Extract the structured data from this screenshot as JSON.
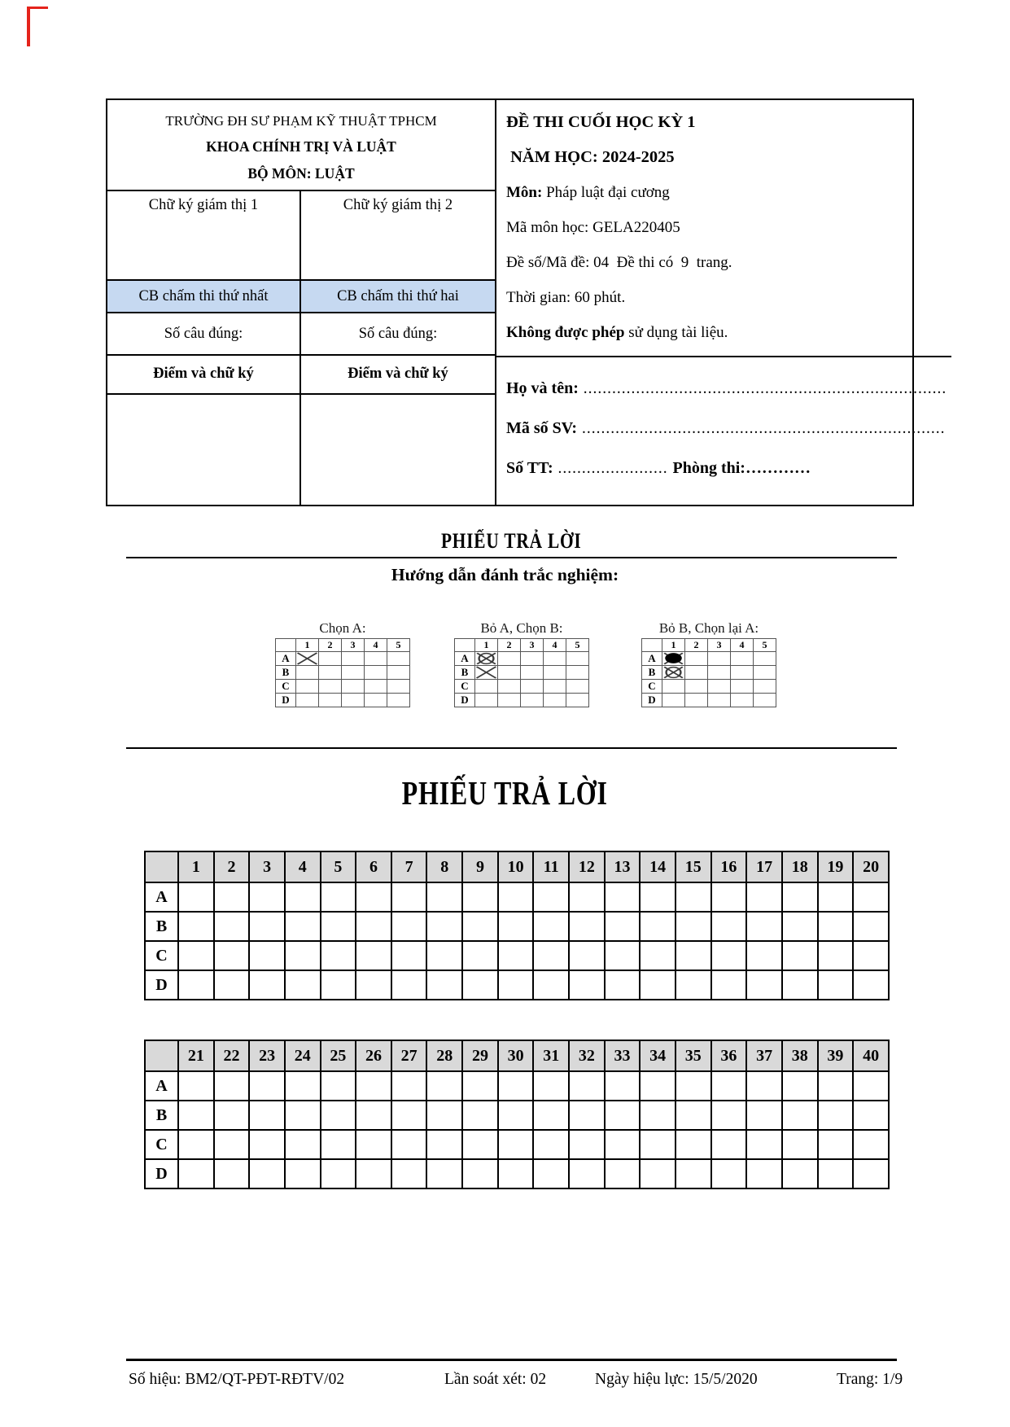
{
  "colors": {
    "corner_mark": "#e5231b",
    "grader_row_bg": "#c6d9f1",
    "table_header_bg": "#d9d9d9"
  },
  "header": {
    "school": {
      "line1": "TRƯỜNG ĐH SƯ PHẠM KỸ THUẬT TPHCM",
      "line2": "KHOA CHÍNH TRỊ VÀ LUẬT",
      "line3": "BỘ MÔN: LUẬT"
    },
    "proctor_labels": [
      "Chữ ký giám thị 1",
      "Chữ ký giám thị 2"
    ],
    "grader_labels": [
      "CB chấm thi thứ nhất",
      "CB chấm thi thứ hai"
    ],
    "correct_count_labels": [
      "Số câu đúng:",
      "Số câu đúng:"
    ],
    "score_labels": [
      "Điểm và chữ ký",
      "Điểm và chữ ký"
    ],
    "exam": {
      "title": "ĐỀ THI CUỐI HỌC KỲ 1",
      "year_line": " NĂM HỌC: 2024-2025",
      "subject_label": "Môn:",
      "subject_rest": " Pháp luật đại cương",
      "code_line": "Mã môn học: GELA220405",
      "variant_line": "Đề số/Mã đề: 04  Đề thi có  9  trang.",
      "time_line": "Thời gian: 60 phút.",
      "rule_bold": "Không được phép",
      "rule_rest": " sử dụng tài liệu."
    },
    "student": {
      "name_label": "Họ và tên:",
      "name_dots": " ............................................................................",
      "id_label": "Mã số SV:",
      "id_dots": " ............................................................................",
      "seat_label": "Số TT:",
      "seat_dots": " .......................  ",
      "room_label": "Phòng thi:",
      "room_dots": "…………"
    }
  },
  "answer_section": {
    "small_title": "PHIẾU TRẢ LỜI",
    "instructions_title": "Hướng dẫn đánh trắc nghiệm:"
  },
  "instructions": {
    "columns": [
      "1",
      "2",
      "3",
      "4",
      "5"
    ],
    "rows": [
      "A",
      "B",
      "C",
      "D"
    ],
    "examples": [
      {
        "caption": "Chọn A:",
        "marks": [
          {
            "row": "A",
            "col": "1",
            "type": "x"
          }
        ]
      },
      {
        "caption": "Bỏ A, Chọn B:",
        "marks": [
          {
            "row": "A",
            "col": "1",
            "type": "circled-x"
          },
          {
            "row": "B",
            "col": "1",
            "type": "x"
          }
        ]
      },
      {
        "caption": "Bỏ B, Chọn lại A:",
        "marks": [
          {
            "row": "A",
            "col": "1",
            "type": "filled"
          },
          {
            "row": "B",
            "col": "1",
            "type": "circled-x"
          }
        ]
      }
    ]
  },
  "sheet_title": "PHIẾU TRẢ LỜI",
  "answer_tables": [
    {
      "numbers": [
        1,
        2,
        3,
        4,
        5,
        6,
        7,
        8,
        9,
        10,
        11,
        12,
        13,
        14,
        15,
        16,
        17,
        18,
        19,
        20
      ],
      "rows": [
        "A",
        "B",
        "C",
        "D"
      ]
    },
    {
      "numbers": [
        21,
        22,
        23,
        24,
        25,
        26,
        27,
        28,
        29,
        30,
        31,
        32,
        33,
        34,
        35,
        36,
        37,
        38,
        39,
        40
      ],
      "rows": [
        "A",
        "B",
        "C",
        "D"
      ]
    }
  ],
  "footer": {
    "doc_number": "Số hiệu: BM2/QT-PĐT-RĐTV/02",
    "revision": "Lần soát xét: 02",
    "effective_date": "Ngày hiệu lực: 15/5/2020",
    "page": "Trang: 1/9"
  }
}
